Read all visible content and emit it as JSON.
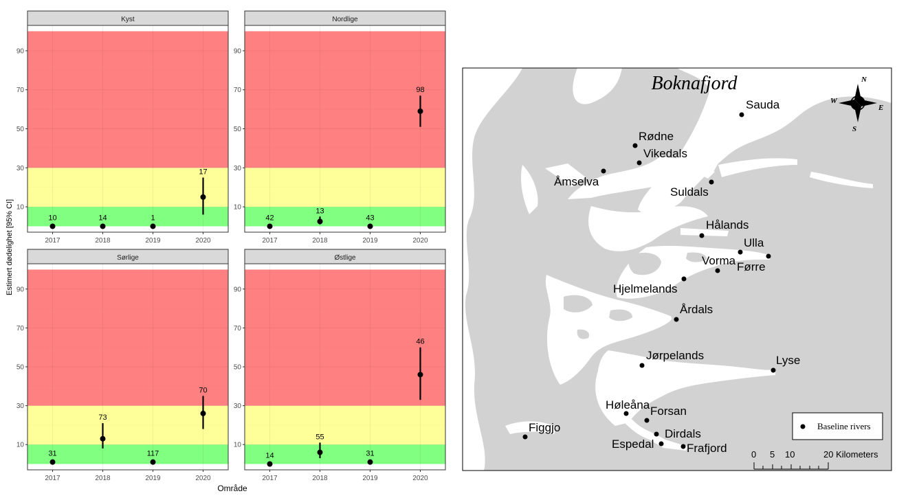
{
  "chart_data": {
    "type": "scatter",
    "ylabel": "Estimert dødelighet [95% CI]",
    "xlabel": "Område",
    "x_categories": [
      "2017",
      "2018",
      "2019",
      "2020"
    ],
    "y_ticks": [
      10,
      30,
      50,
      70,
      90
    ],
    "ylim": [
      -3,
      103
    ],
    "bands": [
      {
        "from": 0,
        "to": 10,
        "color": "#80ff80"
      },
      {
        "from": 10,
        "to": 30,
        "color": "#ffff99"
      },
      {
        "from": 30,
        "to": 100,
        "color": "#ff8080"
      }
    ],
    "grid": true,
    "panels": [
      {
        "name": "Kyst",
        "points": [
          {
            "x": "2017",
            "y": 0,
            "lo": 0,
            "hi": 0,
            "n": "10"
          },
          {
            "x": "2018",
            "y": 0,
            "lo": 0,
            "hi": 0,
            "n": "14"
          },
          {
            "x": "2019",
            "y": 0,
            "lo": 0,
            "hi": 0,
            "n": "1"
          },
          {
            "x": "2020",
            "y": 15,
            "lo": 6,
            "hi": 25,
            "n": "17"
          }
        ]
      },
      {
        "name": "Nordlige",
        "points": [
          {
            "x": "2017",
            "y": 0,
            "lo": 0,
            "hi": 0,
            "n": "42"
          },
          {
            "x": "2018",
            "y": 2.5,
            "lo": 1,
            "hi": 5,
            "n": "13"
          },
          {
            "x": "2019",
            "y": 0,
            "lo": 0,
            "hi": 0,
            "n": "43"
          },
          {
            "x": "2020",
            "y": 59,
            "lo": 51,
            "hi": 67,
            "n": "98"
          }
        ]
      },
      {
        "name": "Sørlige",
        "points": [
          {
            "x": "2017",
            "y": 1,
            "lo": 1,
            "hi": 1,
            "n": "31"
          },
          {
            "x": "2018",
            "y": 13,
            "lo": 8,
            "hi": 21,
            "n": "73"
          },
          {
            "x": "2019",
            "y": 1,
            "lo": 1,
            "hi": 1,
            "n": "117"
          },
          {
            "x": "2020",
            "y": 26,
            "lo": 18,
            "hi": 35,
            "n": "70"
          }
        ]
      },
      {
        "name": "Østlige",
        "points": [
          {
            "x": "2017",
            "y": 0,
            "lo": 0,
            "hi": 0,
            "n": "14"
          },
          {
            "x": "2018",
            "y": 6,
            "lo": 3,
            "hi": 11,
            "n": "55"
          },
          {
            "x": "2019",
            "y": 1,
            "lo": 1,
            "hi": 1,
            "n": "31"
          },
          {
            "x": "2020",
            "y": 46,
            "lo": 33,
            "hi": 60,
            "n": "46"
          }
        ]
      }
    ]
  },
  "map": {
    "title": "Boknafjord",
    "compass": {
      "n": "N",
      "s": "S",
      "e": "E",
      "w": "W"
    },
    "legend_label": "Baseline rivers",
    "scale_labels": [
      "0",
      "5",
      "10",
      "20 Kilometers"
    ],
    "rivers": [
      {
        "name": "Sauda"
      },
      {
        "name": "Rødne"
      },
      {
        "name": "Vikedals"
      },
      {
        "name": "Åmselva"
      },
      {
        "name": "Suldals"
      },
      {
        "name": "Hålands"
      },
      {
        "name": "Ulla"
      },
      {
        "name": "Vorma"
      },
      {
        "name": "Førre"
      },
      {
        "name": "Hjelmelands"
      },
      {
        "name": "Årdals"
      },
      {
        "name": "Jørpelands"
      },
      {
        "name": "Lyse"
      },
      {
        "name": "Figgjo"
      },
      {
        "name": "Høleåna"
      },
      {
        "name": "Forsan"
      },
      {
        "name": "Dirdals"
      },
      {
        "name": "Espedal"
      },
      {
        "name": "Frafjord"
      }
    ]
  }
}
